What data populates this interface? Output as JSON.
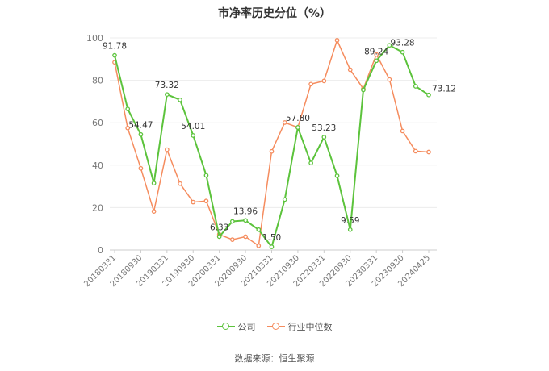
{
  "chart_data": {
    "type": "line",
    "title": "市净率历史分位（%）",
    "ylim": [
      0,
      100
    ],
    "yticks": [
      0,
      20,
      40,
      60,
      80,
      100
    ],
    "grid": true,
    "legend_position": "bottom",
    "x": [
      "20180331",
      "20180630",
      "20180930",
      "20181231",
      "20190331",
      "20190630",
      "20190930",
      "20191231",
      "20200331",
      "20200630",
      "20200930",
      "20201231",
      "20210331",
      "20210630",
      "20210930",
      "20211231",
      "20220331",
      "20220630",
      "20220930",
      "20221231",
      "20230331",
      "20230630",
      "20230930",
      "20231231",
      "20240425"
    ],
    "xtick_labels": [
      "20180331",
      "20180930",
      "20190331",
      "20190930",
      "20200331",
      "20200930",
      "20210331",
      "20210930",
      "20220331",
      "20220930",
      "20230331",
      "20230930",
      "20240425"
    ],
    "series": [
      {
        "name": "公司",
        "color": "#5cc33c",
        "values": [
          91.78,
          66.5,
          54.47,
          31.5,
          73.32,
          70.8,
          54.01,
          35.2,
          6.33,
          13.5,
          13.96,
          9.6,
          1.5,
          23.8,
          57.8,
          41.0,
          53.23,
          35.0,
          9.59,
          75.5,
          89.24,
          96.5,
          93.28,
          77.2,
          73.12
        ],
        "labels": {
          "0": "91.78",
          "2": "54.47",
          "4": "73.32",
          "6": "54.01",
          "8": "6.33",
          "10": "13.96",
          "12": "1.50",
          "14": "57.80",
          "16": "53.23",
          "18": "9.59",
          "20": "89.24",
          "22": "93.28",
          "24": "73.12"
        }
      },
      {
        "name": "行业中位数",
        "color": "#f58c5e",
        "values": [
          88.5,
          57.5,
          38.5,
          18.2,
          47.3,
          31.3,
          22.6,
          23.1,
          7.3,
          4.9,
          6.3,
          2.0,
          46.5,
          60.1,
          57.8,
          78.2,
          79.7,
          98.9,
          85.0,
          76.0,
          92.2,
          80.4,
          56.1,
          46.6,
          46.2
        ]
      }
    ]
  },
  "source": "数据来源：恒生聚源"
}
